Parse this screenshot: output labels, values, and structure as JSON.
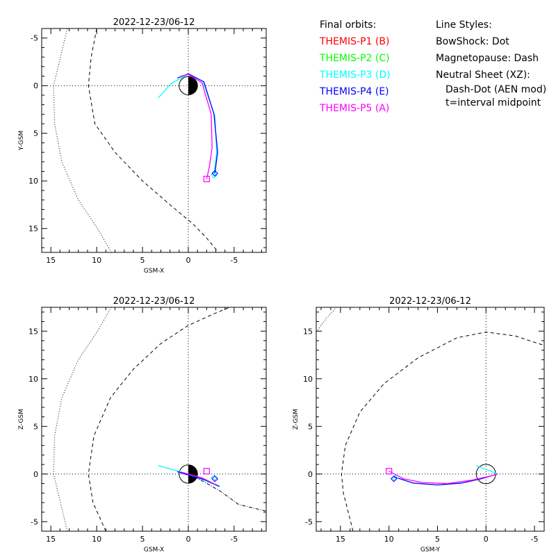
{
  "legend": {
    "orbits_header": "Final orbits:",
    "probes": [
      {
        "label": "THEMIS-P1 (B)",
        "color": "#ff0000"
      },
      {
        "label": "THEMIS-P2 (C)",
        "color": "#00ff00"
      },
      {
        "label": "THEMIS-P3 (D)",
        "color": "#00ffff"
      },
      {
        "label": "THEMIS-P4 (E)",
        "color": "#0000ff"
      },
      {
        "label": "THEMIS-P5 (A)",
        "color": "#ff00ff"
      }
    ],
    "styles_header": "Line Styles:",
    "bowshock": "BowShock: Dot",
    "magnetopause": "Magnetopause: Dash",
    "neutral_sheet": "Neutral Sheet (XZ):",
    "neutral_sheet_model": "Dash-Dot (AEN mod)",
    "neutral_sheet_time": "t=interval midpoint"
  },
  "chart_data": [
    {
      "type": "line",
      "title": "2022-12-23/06-12",
      "xlabel": "GSM-X",
      "ylabel": "Y-GSM",
      "xlim": [
        16,
        -8.5
      ],
      "ylim": [
        17.5,
        -6
      ],
      "xticks": [
        15,
        10,
        5,
        0,
        -5
      ],
      "yticks": [
        -5,
        0,
        5,
        10,
        15
      ],
      "grid": "dotted zero lines",
      "bowshock": [
        [
          13.2,
          -6
        ],
        [
          14.7,
          0
        ],
        [
          14.6,
          4
        ],
        [
          13.8,
          8
        ],
        [
          12,
          12
        ],
        [
          9.9,
          15
        ],
        [
          8.4,
          17.5
        ]
      ],
      "magnetopause": [
        [
          10,
          -6
        ],
        [
          10.6,
          -3
        ],
        [
          10.9,
          0
        ],
        [
          10.2,
          4
        ],
        [
          8,
          7
        ],
        [
          5,
          10
        ],
        [
          2,
          12.5
        ],
        [
          -0.5,
          14.5
        ],
        [
          -2,
          16
        ],
        [
          -3.3,
          17.5
        ]
      ],
      "series": [
        {
          "color": "#00ffff",
          "points": [
            [
              3.3,
              1.3
            ],
            [
              1.9,
              -0.2
            ],
            [
              0,
              -1.2
            ],
            [
              -1.7,
              -0.2
            ],
            [
              -2.9,
              3.2
            ],
            [
              -3.1,
              7
            ],
            [
              -2.8,
              9.4
            ]
          ]
        },
        {
          "color": "#0000ff",
          "points": [
            [
              1.2,
              -0.8
            ],
            [
              0,
              -1.25
            ],
            [
              -1.7,
              -0.4
            ],
            [
              -2.8,
              3
            ],
            [
              -3.2,
              7
            ],
            [
              -2.9,
              9.2
            ]
          ]
        },
        {
          "color": "#ff00ff",
          "points": [
            [
              0.8,
              -1
            ],
            [
              0,
              -1.2
            ],
            [
              -1.5,
              -0.3
            ],
            [
              -2.5,
              3
            ],
            [
              -2.6,
              6.5
            ],
            [
              -2.3,
              8.5
            ],
            [
              -2,
              9.8
            ]
          ]
        }
      ],
      "markers": [
        {
          "shape": "square",
          "color": "#ff00ff",
          "x": -2,
          "y": 9.8
        },
        {
          "shape": "diamond",
          "color": "#00ffff",
          "x": -2.8,
          "y": 9.4
        },
        {
          "shape": "diamond",
          "color": "#0000ff",
          "x": -2.9,
          "y": 9.2
        }
      ],
      "earth": {
        "half": "right"
      }
    },
    {
      "type": "line",
      "title": "2022-12-23/06-12",
      "xlabel": "GSM-X",
      "ylabel": "Z-GSM",
      "xlim": [
        16,
        -8.5
      ],
      "ylim": [
        -6,
        17.5
      ],
      "xticks": [
        15,
        10,
        5,
        0,
        -5
      ],
      "yticks": [
        -5,
        0,
        5,
        10,
        15
      ],
      "grid": "dotted zero lines",
      "bowshock": [
        [
          13.2,
          -6
        ],
        [
          14.7,
          0
        ],
        [
          14.6,
          4
        ],
        [
          13.8,
          8
        ],
        [
          12,
          12
        ],
        [
          9.9,
          15
        ],
        [
          8.4,
          17.5
        ]
      ],
      "magnetopause": [
        [
          9,
          -6
        ],
        [
          10.4,
          -3
        ],
        [
          10.9,
          0
        ],
        [
          10.3,
          4
        ],
        [
          8.5,
          8
        ],
        [
          6,
          11
        ],
        [
          3,
          13.7
        ],
        [
          0,
          15.6
        ],
        [
          -3,
          16.9
        ],
        [
          -4.5,
          17.5
        ]
      ],
      "neutral_sheet": [
        [
          0,
          0
        ],
        [
          -1.5,
          -0.7
        ],
        [
          -3.5,
          -1.8
        ],
        [
          -5.5,
          -3.2
        ],
        [
          -8.5,
          -3.9
        ]
      ],
      "series": [
        {
          "color": "#00ffff",
          "points": [
            [
              3.3,
              0.9
            ],
            [
              0,
              0
            ],
            [
              -3.4,
              -1.3
            ]
          ]
        },
        {
          "color": "#0000ff",
          "points": [
            [
              1.2,
              0.25
            ],
            [
              0,
              -0.1
            ],
            [
              -1.8,
              -0.6
            ],
            [
              -3.4,
              -1.3
            ]
          ]
        },
        {
          "color": "#ff00ff",
          "points": [
            [
              0.8,
              0.2
            ],
            [
              0,
              0
            ],
            [
              -1.5,
              -0.4
            ],
            [
              -3,
              -1.1
            ]
          ]
        }
      ],
      "markers": [
        {
          "shape": "square",
          "color": "#ff00ff",
          "x": -2,
          "y": 0.3
        },
        {
          "shape": "diamond",
          "color": "#00ffff",
          "x": -2.8,
          "y": -0.4
        },
        {
          "shape": "diamond",
          "color": "#0000ff",
          "x": -2.9,
          "y": -0.5
        }
      ],
      "earth": {
        "half": "right"
      }
    },
    {
      "type": "line",
      "title": "2022-12-23/06-12",
      "xlabel": "GSM-Y",
      "ylabel": "Z-GSM",
      "xlim": [
        17.5,
        -6
      ],
      "ylim": [
        -6,
        17.5
      ],
      "xticks": [
        15,
        10,
        5,
        0,
        -5
      ],
      "yticks": [
        -5,
        0,
        5,
        10,
        15
      ],
      "grid": "dotted zero lines",
      "bowshock": [
        [
          17.5,
          14.9
        ],
        [
          16.5,
          16.3
        ],
        [
          15.4,
          17.5
        ]
      ],
      "magnetopause": [
        [
          13.7,
          -6
        ],
        [
          14.7,
          -2
        ],
        [
          14.9,
          0
        ],
        [
          14.5,
          3
        ],
        [
          13,
          6.5
        ],
        [
          10.5,
          9.5
        ],
        [
          7,
          12.2
        ],
        [
          3,
          14.3
        ],
        [
          0,
          14.9
        ],
        [
          -3,
          14.5
        ],
        [
          -6,
          13.5
        ]
      ],
      "series": [
        {
          "color": "#00ffff",
          "points": [
            [
              1,
              0.85
            ],
            [
              0,
              0.5
            ],
            [
              -1.2,
              0
            ]
          ]
        },
        {
          "color": "#0000ff",
          "points": [
            [
              9.5,
              -0.3
            ],
            [
              7.5,
              -0.95
            ],
            [
              5,
              -1.15
            ],
            [
              2.5,
              -0.95
            ],
            [
              0.5,
              -0.5
            ],
            [
              -1.2,
              0
            ]
          ]
        },
        {
          "color": "#ff00ff",
          "points": [
            [
              10,
              0.3
            ],
            [
              8.5,
              -0.5
            ],
            [
              6.5,
              -0.9
            ],
            [
              4,
              -1
            ],
            [
              1.5,
              -0.65
            ],
            [
              -0.5,
              -0.2
            ],
            [
              -1.2,
              0
            ]
          ]
        }
      ],
      "markers": [
        {
          "shape": "square",
          "color": "#ff00ff",
          "x": 10,
          "y": 0.3
        },
        {
          "shape": "diamond",
          "color": "#00ffff",
          "x": 9.4,
          "y": -0.4
        },
        {
          "shape": "diamond",
          "color": "#0000ff",
          "x": 9.5,
          "y": -0.5
        }
      ],
      "earth": {
        "half": "none"
      }
    }
  ]
}
